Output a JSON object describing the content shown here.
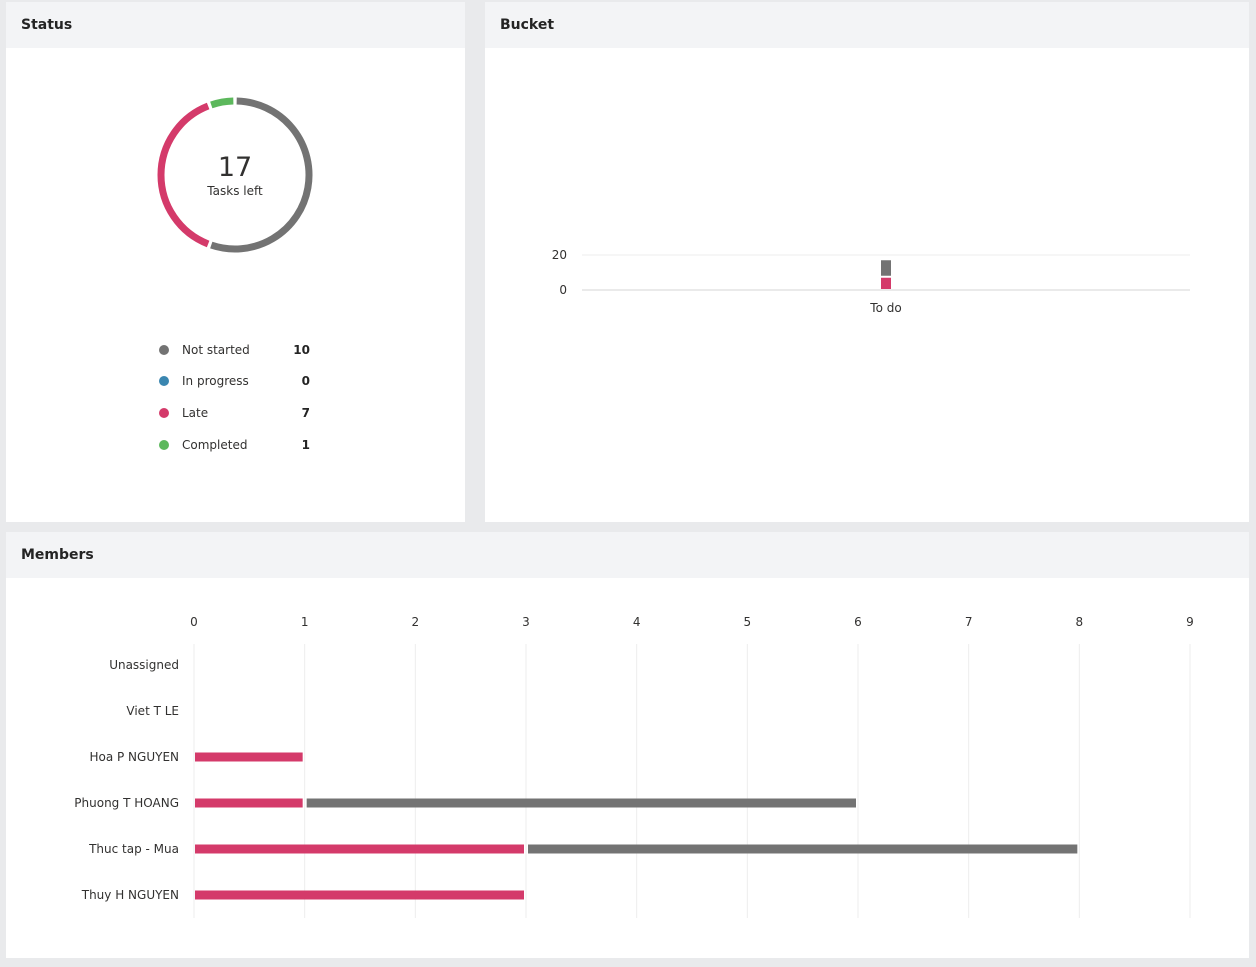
{
  "status": {
    "title": "Status",
    "tasks_left": "17",
    "tasks_left_label": "Tasks left",
    "legend": [
      {
        "label": "Not started",
        "count": "10",
        "color": "#737373"
      },
      {
        "label": "In progress",
        "count": "0",
        "color": "#3a86b0"
      },
      {
        "label": "Late",
        "count": "7",
        "color": "#d43a6a"
      },
      {
        "label": "Completed",
        "count": "1",
        "color": "#5cb85c"
      }
    ]
  },
  "bucket": {
    "title": "Bucket"
  },
  "members": {
    "title": "Members"
  },
  "chart_data": [
    {
      "type": "pie",
      "title": "Status",
      "center_text": "17 Tasks left",
      "categories": [
        "Not started",
        "In progress",
        "Late",
        "Completed"
      ],
      "values": [
        10,
        0,
        7,
        1
      ],
      "colors": [
        "#737373",
        "#3a86b0",
        "#d43a6a",
        "#5cb85c"
      ],
      "legend": "bottom"
    },
    {
      "type": "bar",
      "title": "Bucket",
      "categories": [
        "To do"
      ],
      "series": [
        {
          "values": [
            7
          ],
          "color": "#d43a6a"
        },
        {
          "values": [
            10
          ],
          "color": "#737373"
        }
      ],
      "stacked": true,
      "yticks": [
        0,
        20
      ],
      "grid": true
    },
    {
      "type": "bar",
      "orientation": "horizontal",
      "title": "Members",
      "categories": [
        "Unassigned",
        "Viet T LE",
        "Hoa P NGUYEN",
        "Phuong T HOANG",
        "Thuc tap - Mua",
        "Thuy H NGUYEN"
      ],
      "series": [
        {
          "values": [
            0,
            0,
            1,
            1,
            3,
            3
          ],
          "color": "#d43a6a"
        },
        {
          "values": [
            0,
            0,
            0,
            5,
            5,
            0
          ],
          "color": "#737373"
        }
      ],
      "stacked": true,
      "xticks": [
        0,
        1,
        2,
        3,
        4,
        5,
        6,
        7,
        8,
        9
      ],
      "xlim": [
        0,
        9
      ],
      "grid": true
    }
  ]
}
